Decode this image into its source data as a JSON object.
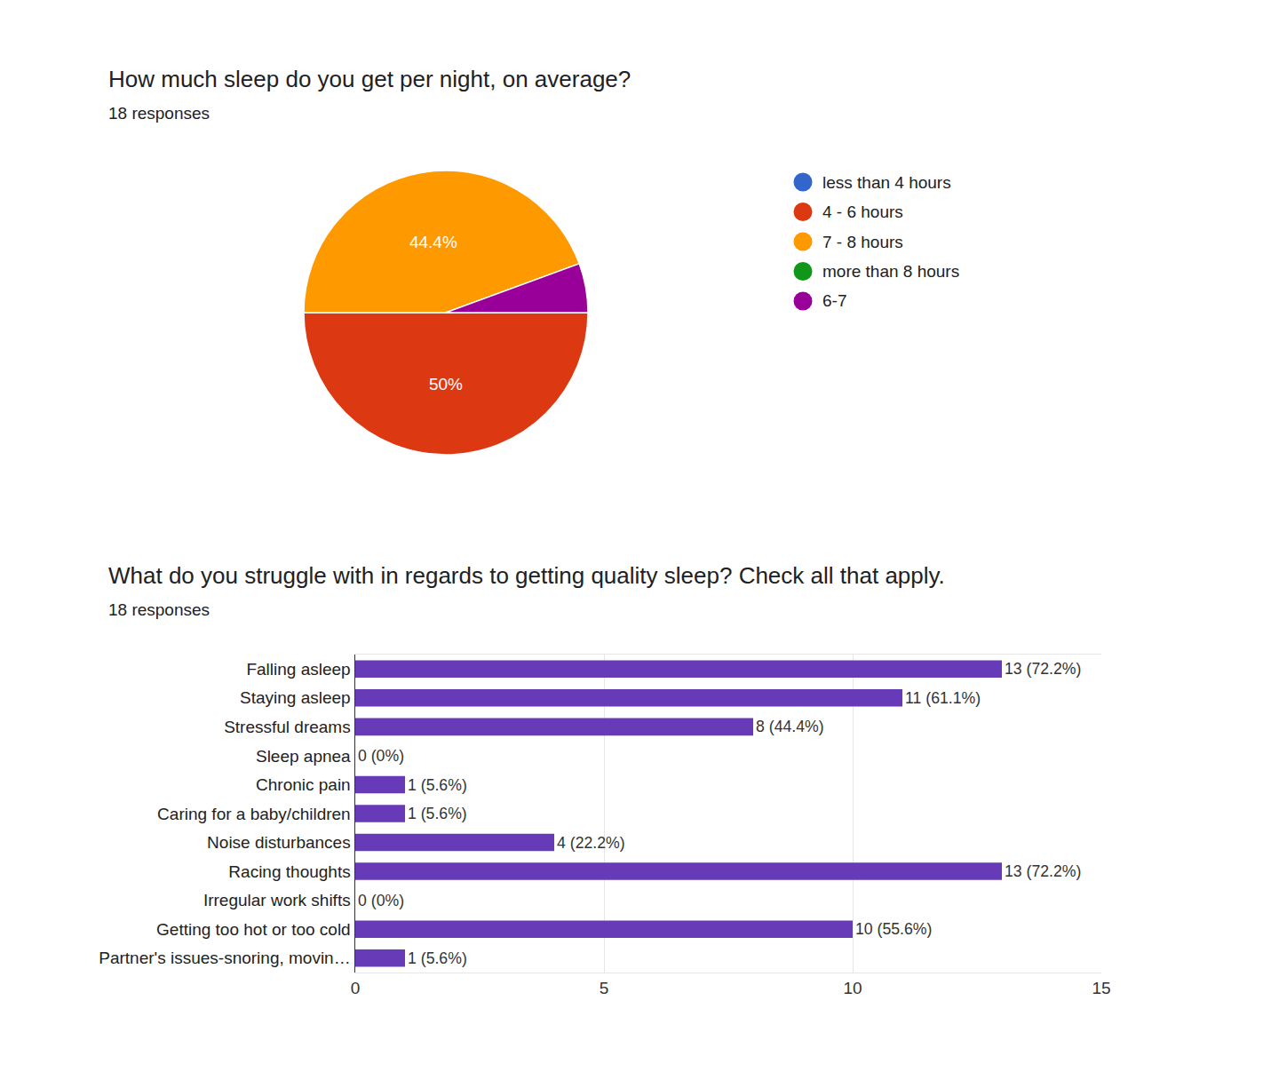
{
  "chart_data": [
    {
      "type": "pie",
      "title": "How much sleep do you get per night, on average?",
      "subtitle": "18 responses",
      "categories": [
        "less than 4 hours",
        "4 - 6 hours",
        "7 - 8 hours",
        "more than 8 hours",
        "6-7"
      ],
      "values": [
        0,
        50,
        44.4,
        0,
        5.6
      ],
      "value_labels": [
        null,
        "50%",
        "44.4%",
        null,
        null
      ],
      "colors": [
        "#3366cc",
        "#dc3912",
        "#ff9900",
        "#109618",
        "#990099"
      ],
      "data_labels": true,
      "legend": "right"
    },
    {
      "type": "bar",
      "orientation": "horizontal",
      "title": "What do you struggle with in regards to getting quality sleep? Check all that apply.",
      "subtitle": "18 responses",
      "categories": [
        "Falling asleep",
        "Staying asleep",
        "Stressful dreams",
        "Sleep apnea",
        "Chronic pain",
        "Caring for a baby/children",
        "Noise disturbances",
        "Racing thoughts",
        "Irregular work shifts",
        "Getting too hot or too cold",
        "Partner's issues-snoring, movin…"
      ],
      "values": [
        13,
        11,
        8,
        0,
        1,
        1,
        4,
        13,
        0,
        10,
        1
      ],
      "value_labels": [
        "13 (72.2%)",
        "11 (61.1%)",
        "8 (44.4%)",
        "0 (0%)",
        "1 (5.6%)",
        "1 (5.6%)",
        "4 (22.2%)",
        "13 (72.2%)",
        "0 (0%)",
        "10 (55.6%)",
        "1 (5.6%)"
      ],
      "color": "#673ab7",
      "data_labels": true,
      "xlim": [
        0,
        15
      ],
      "xticks": [
        0,
        5,
        10,
        15
      ],
      "grid": true
    }
  ]
}
